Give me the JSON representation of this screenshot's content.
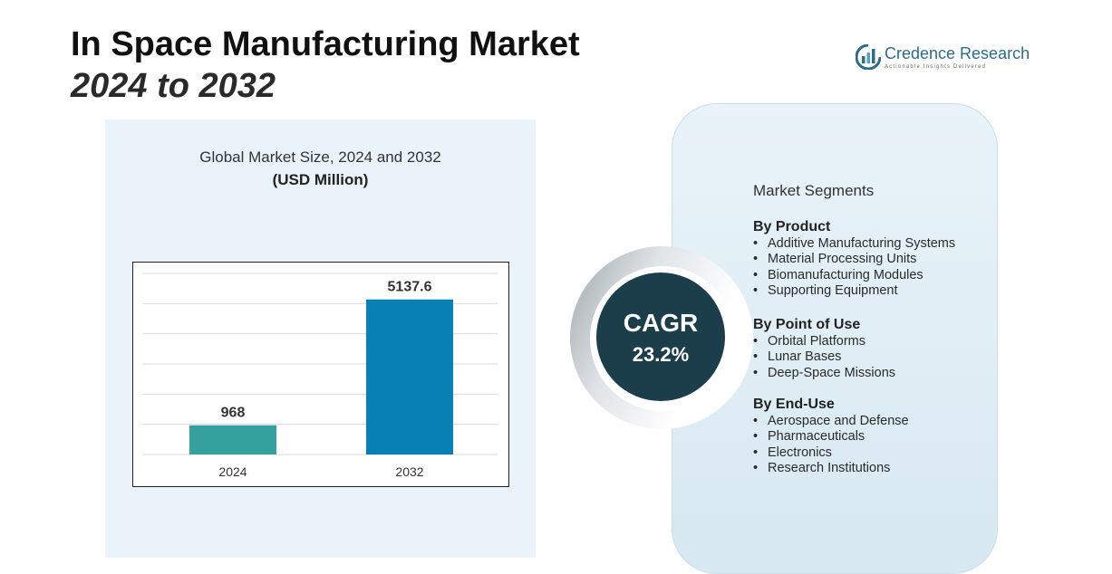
{
  "header": {
    "title_line1": "In Space Manufacturing Market",
    "title_line2": "2024 to 2032"
  },
  "logo": {
    "name": "Credence Research",
    "tagline": "Actionable Insights Delivered",
    "icon": "bar-chart-circle-icon"
  },
  "chart_data": {
    "type": "bar",
    "title": "Global Market Size, 2024 and 2032",
    "subtitle": "(USD Million)",
    "categories": [
      "2024",
      "2032"
    ],
    "values": [
      968,
      5137.6
    ],
    "value_labels": [
      "968",
      "5137.6"
    ],
    "colors": [
      "#35a19e",
      "#0781b3"
    ],
    "ylim": [
      0,
      6000
    ],
    "grid": true,
    "xlabel": "",
    "ylabel": ""
  },
  "cagr": {
    "label": "CAGR",
    "value": "23.2%"
  },
  "segments": {
    "title": "Market Segments",
    "groups": [
      {
        "heading": "By Product",
        "items": [
          "Additive Manufacturing Systems",
          "Material Processing Units",
          "Biomanufacturing Modules",
          "Supporting Equipment"
        ]
      },
      {
        "heading": "By Point of Use",
        "items": [
          "Orbital Platforms",
          "Lunar Bases",
          "Deep-Space Missions"
        ]
      },
      {
        "heading": "By End-Use",
        "items": [
          "Aerospace and Defense",
          "Pharmaceuticals",
          "Electronics",
          "Research Institutions"
        ]
      }
    ]
  },
  "colors": {
    "accent_dark": "#1c3d4a",
    "logo_blue": "#2b6c8f",
    "panel_bg": "#e9f3f9"
  }
}
